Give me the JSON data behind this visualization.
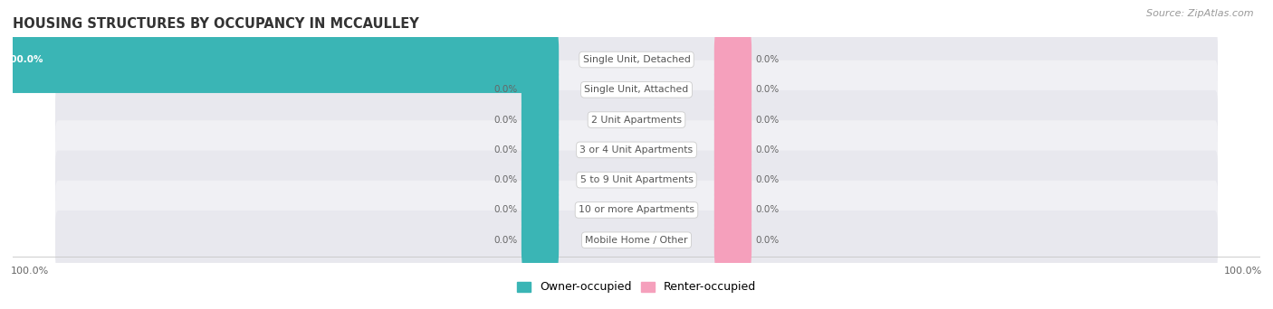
{
  "title": "HOUSING STRUCTURES BY OCCUPANCY IN MCCAULLEY",
  "source": "Source: ZipAtlas.com",
  "categories": [
    "Single Unit, Detached",
    "Single Unit, Attached",
    "2 Unit Apartments",
    "3 or 4 Unit Apartments",
    "5 to 9 Unit Apartments",
    "10 or more Apartments",
    "Mobile Home / Other"
  ],
  "owner_values": [
    100.0,
    0.0,
    0.0,
    0.0,
    0.0,
    0.0,
    0.0
  ],
  "renter_values": [
    0.0,
    0.0,
    0.0,
    0.0,
    0.0,
    0.0,
    0.0
  ],
  "owner_color": "#3ab5b5",
  "renter_color": "#f5a0bc",
  "row_bg_colors": [
    "#e8e8ee",
    "#f0f0f4",
    "#e8e8ee",
    "#f0f0f4",
    "#e8e8ee",
    "#f0f0f4",
    "#e8e8ee"
  ],
  "label_color": "#555555",
  "title_color": "#333333",
  "source_color": "#999999",
  "axis_label_color": "#666666",
  "min_stub": 5.0,
  "max_value": 100.0,
  "figsize": [
    14.06,
    3.42
  ],
  "dpi": 100
}
